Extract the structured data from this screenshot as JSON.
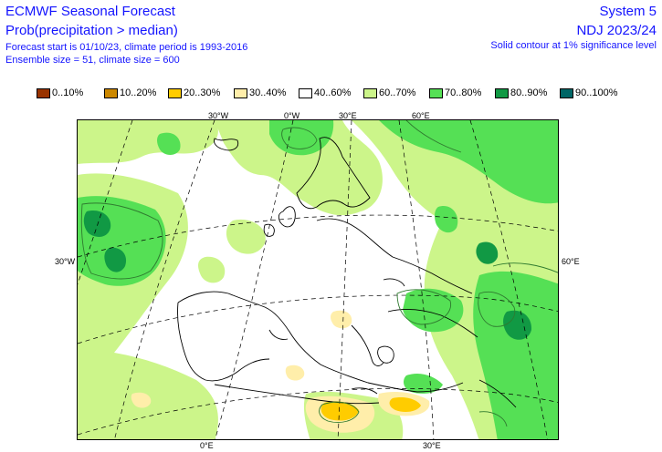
{
  "header": {
    "title": "ECMWF Seasonal Forecast",
    "subtitle": "Prob(precipitation > median)",
    "forecast_info": "Forecast start is 01/10/23, climate period is 1993-2016",
    "ensemble_info": "Ensemble size = 51, climate size = 600",
    "system": "System 5",
    "season": "NDJ 2023/24",
    "significance_note": "Solid contour at 1% significance level"
  },
  "legend": [
    {
      "label": "0..10%",
      "color": "#993300"
    },
    {
      "label": "10..20%",
      "color": "#cc8800"
    },
    {
      "label": "20..30%",
      "color": "#ffcc00"
    },
    {
      "label": "30..40%",
      "color": "#ffeeaa"
    },
    {
      "label": "40..60%",
      "color": "#ffffff"
    },
    {
      "label": "60..70%",
      "color": "#ccf58a"
    },
    {
      "label": "70..80%",
      "color": "#55e055"
    },
    {
      "label": "80..90%",
      "color": "#119944"
    },
    {
      "label": "90..100%",
      "color": "#006666"
    }
  ],
  "coordinate_labels": {
    "top": [
      "30°W",
      "0°W",
      "30°E",
      "60°E"
    ],
    "left": "30°W",
    "right": "60°E",
    "bottom": [
      "0°E",
      "30°E"
    ]
  }
}
